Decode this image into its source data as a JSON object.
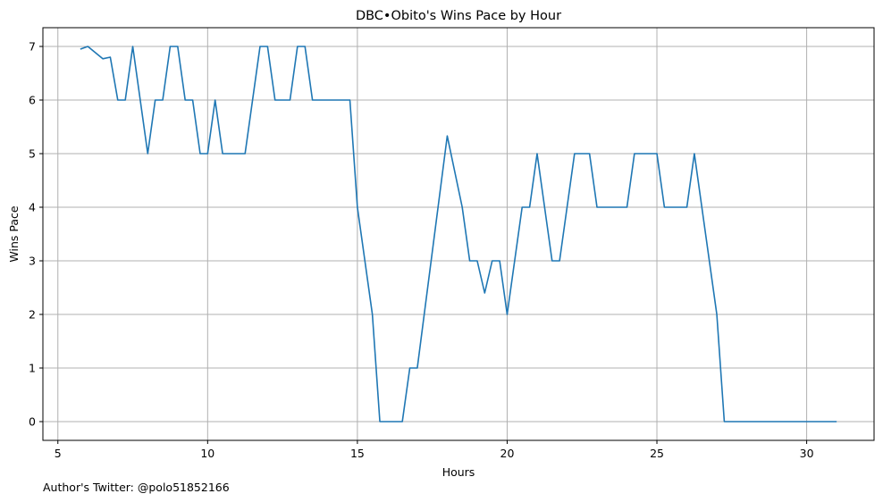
{
  "chart_data": {
    "type": "line",
    "title": "DBC•Obito's Wins Pace by Hour",
    "xlabel": "Hours",
    "ylabel": "Wins Pace",
    "xlim": [
      4.5,
      32.25
    ],
    "ylim": [
      -0.35,
      7.35
    ],
    "xticks": [
      5,
      10,
      15,
      20,
      25,
      30
    ],
    "yticks": [
      0,
      1,
      2,
      3,
      4,
      5,
      6,
      7
    ],
    "grid": true,
    "line_color": "#1f77b4",
    "series": [
      {
        "x": [
          5.75,
          6.0,
          6.5,
          6.75,
          7.0,
          7.25,
          7.5,
          8.0,
          8.25,
          8.5,
          8.75,
          9.0,
          9.25,
          9.5,
          9.75,
          10.0,
          10.25,
          10.5,
          11.25,
          11.75,
          12.0,
          12.25,
          12.75,
          13.0,
          13.25,
          13.5,
          14.75,
          15.0,
          15.5,
          15.75,
          16.5,
          16.75,
          17.0,
          18.0,
          18.5,
          18.75,
          19.0,
          19.25,
          19.5,
          19.75,
          20.0,
          20.5,
          20.75,
          21.0,
          21.5,
          21.75,
          22.25,
          22.75,
          23.0,
          24.0,
          24.25,
          25.0,
          25.25,
          26.0,
          26.25,
          27.0,
          27.25,
          31.0
        ],
        "y": [
          6.95,
          7.0,
          6.77,
          6.8,
          6.0,
          6.0,
          7.0,
          5.0,
          6.0,
          6.0,
          7.0,
          7.0,
          6.0,
          6.0,
          5.0,
          5.0,
          6.0,
          5.0,
          5.0,
          7.0,
          7.0,
          6.0,
          6.0,
          7.0,
          7.0,
          6.0,
          6.0,
          4.0,
          2.0,
          0.0,
          0.0,
          1.0,
          1.0,
          5.33,
          4.0,
          3.0,
          3.0,
          2.4,
          3.0,
          3.0,
          2.0,
          4.0,
          4.0,
          5.0,
          3.0,
          3.0,
          5.0,
          5.0,
          4.0,
          4.0,
          5.0,
          5.0,
          4.0,
          4.0,
          5.0,
          2.0,
          0.0,
          0.0
        ]
      }
    ]
  },
  "footer": {
    "author_text": "Author's Twitter: @polo51852166"
  }
}
